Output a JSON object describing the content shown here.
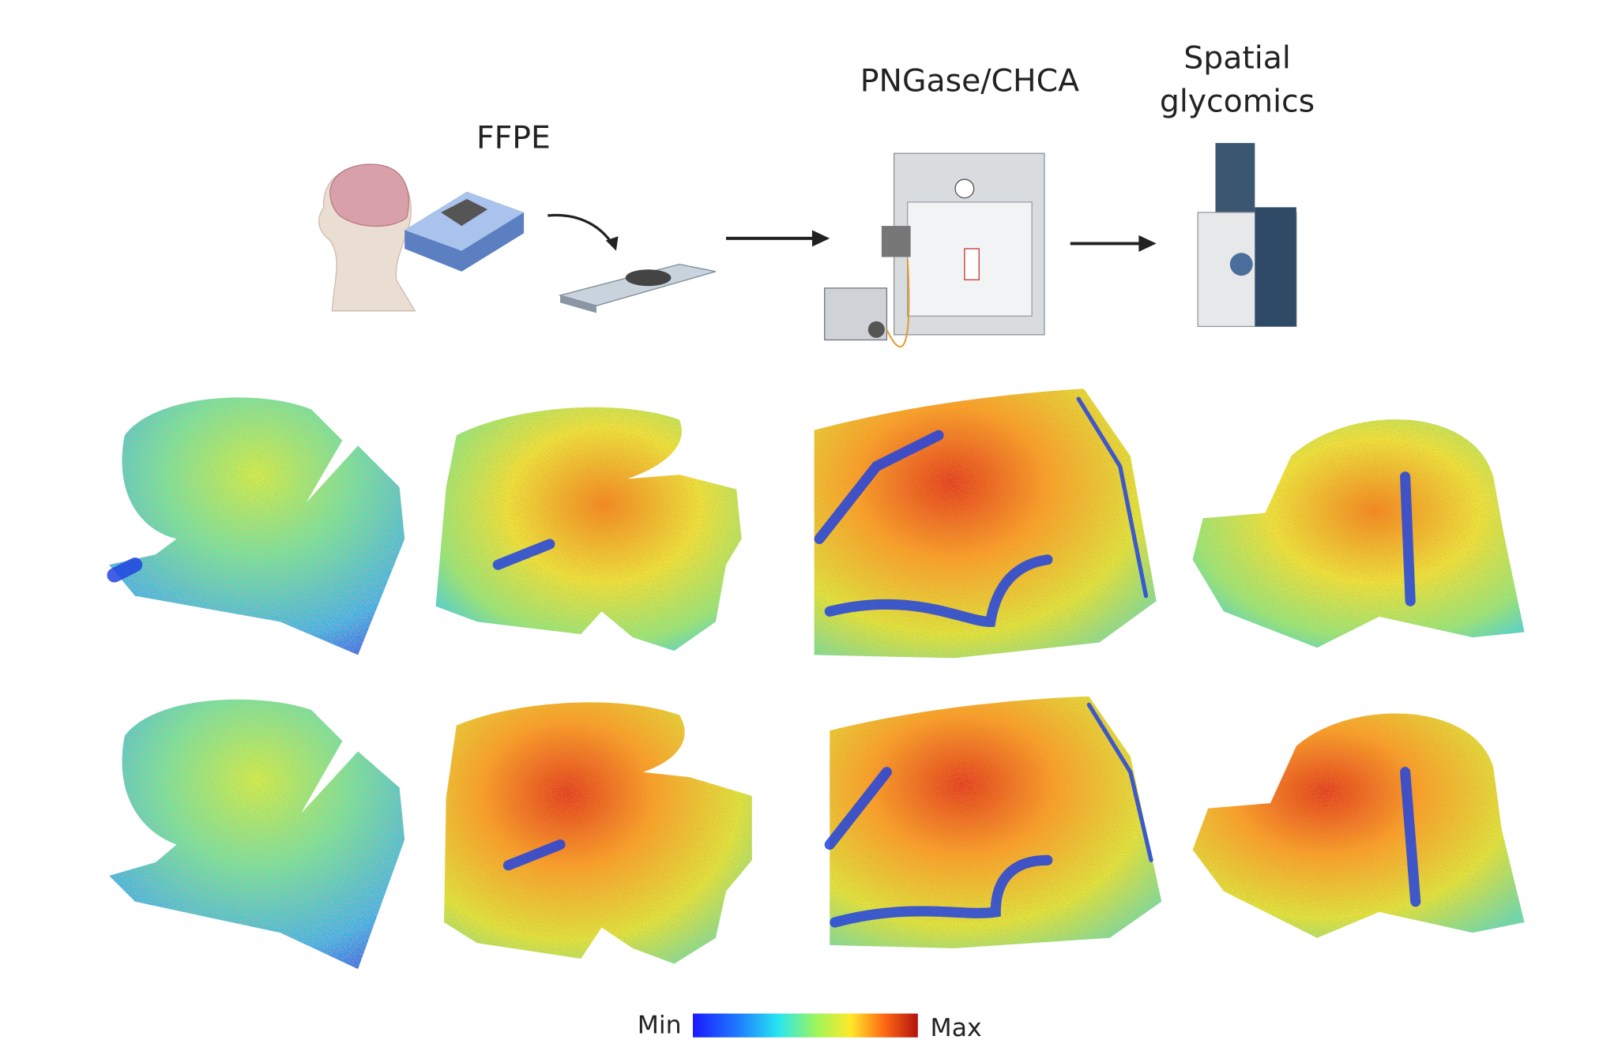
{
  "workflow": {
    "steps": [
      {
        "label": "FFPE"
      },
      {
        "label": "PNGase/CHCA"
      },
      {
        "label_lines": [
          "Spatial",
          "glycomics"
        ]
      }
    ]
  },
  "colorbar": {
    "min_label": "Min",
    "max_label": "Max"
  }
}
